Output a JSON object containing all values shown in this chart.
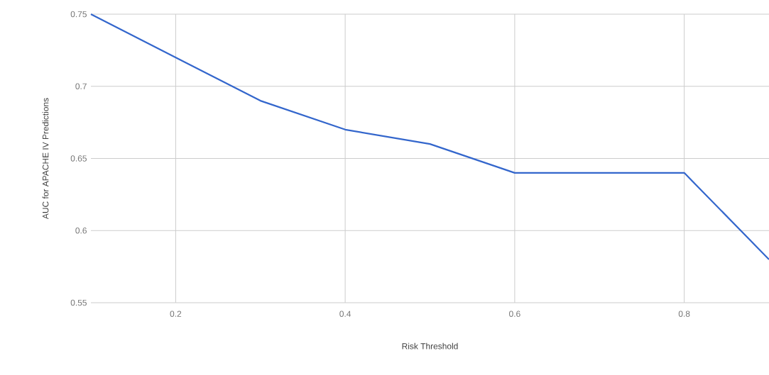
{
  "chart_data": {
    "type": "line",
    "xlabel": "Risk Threshold",
    "ylabel": "AUC for APACHE IV Predictions",
    "x": [
      0.1,
      0.2,
      0.3,
      0.4,
      0.5,
      0.6,
      0.8,
      0.9
    ],
    "series": [
      {
        "color": "#3366cc",
        "values": [
          0.75,
          0.72,
          0.69,
          0.67,
          0.66,
          0.64,
          0.64,
          0.58
        ]
      }
    ],
    "xlim": [
      0.1,
      0.9
    ],
    "ylim": [
      0.55,
      0.75
    ],
    "xticks": [
      0.2,
      0.4,
      0.6,
      0.8
    ],
    "yticks": [
      0.55,
      0.6,
      0.65,
      0.7,
      0.75
    ],
    "grid": true,
    "marker": "none",
    "line_style": "solid"
  }
}
